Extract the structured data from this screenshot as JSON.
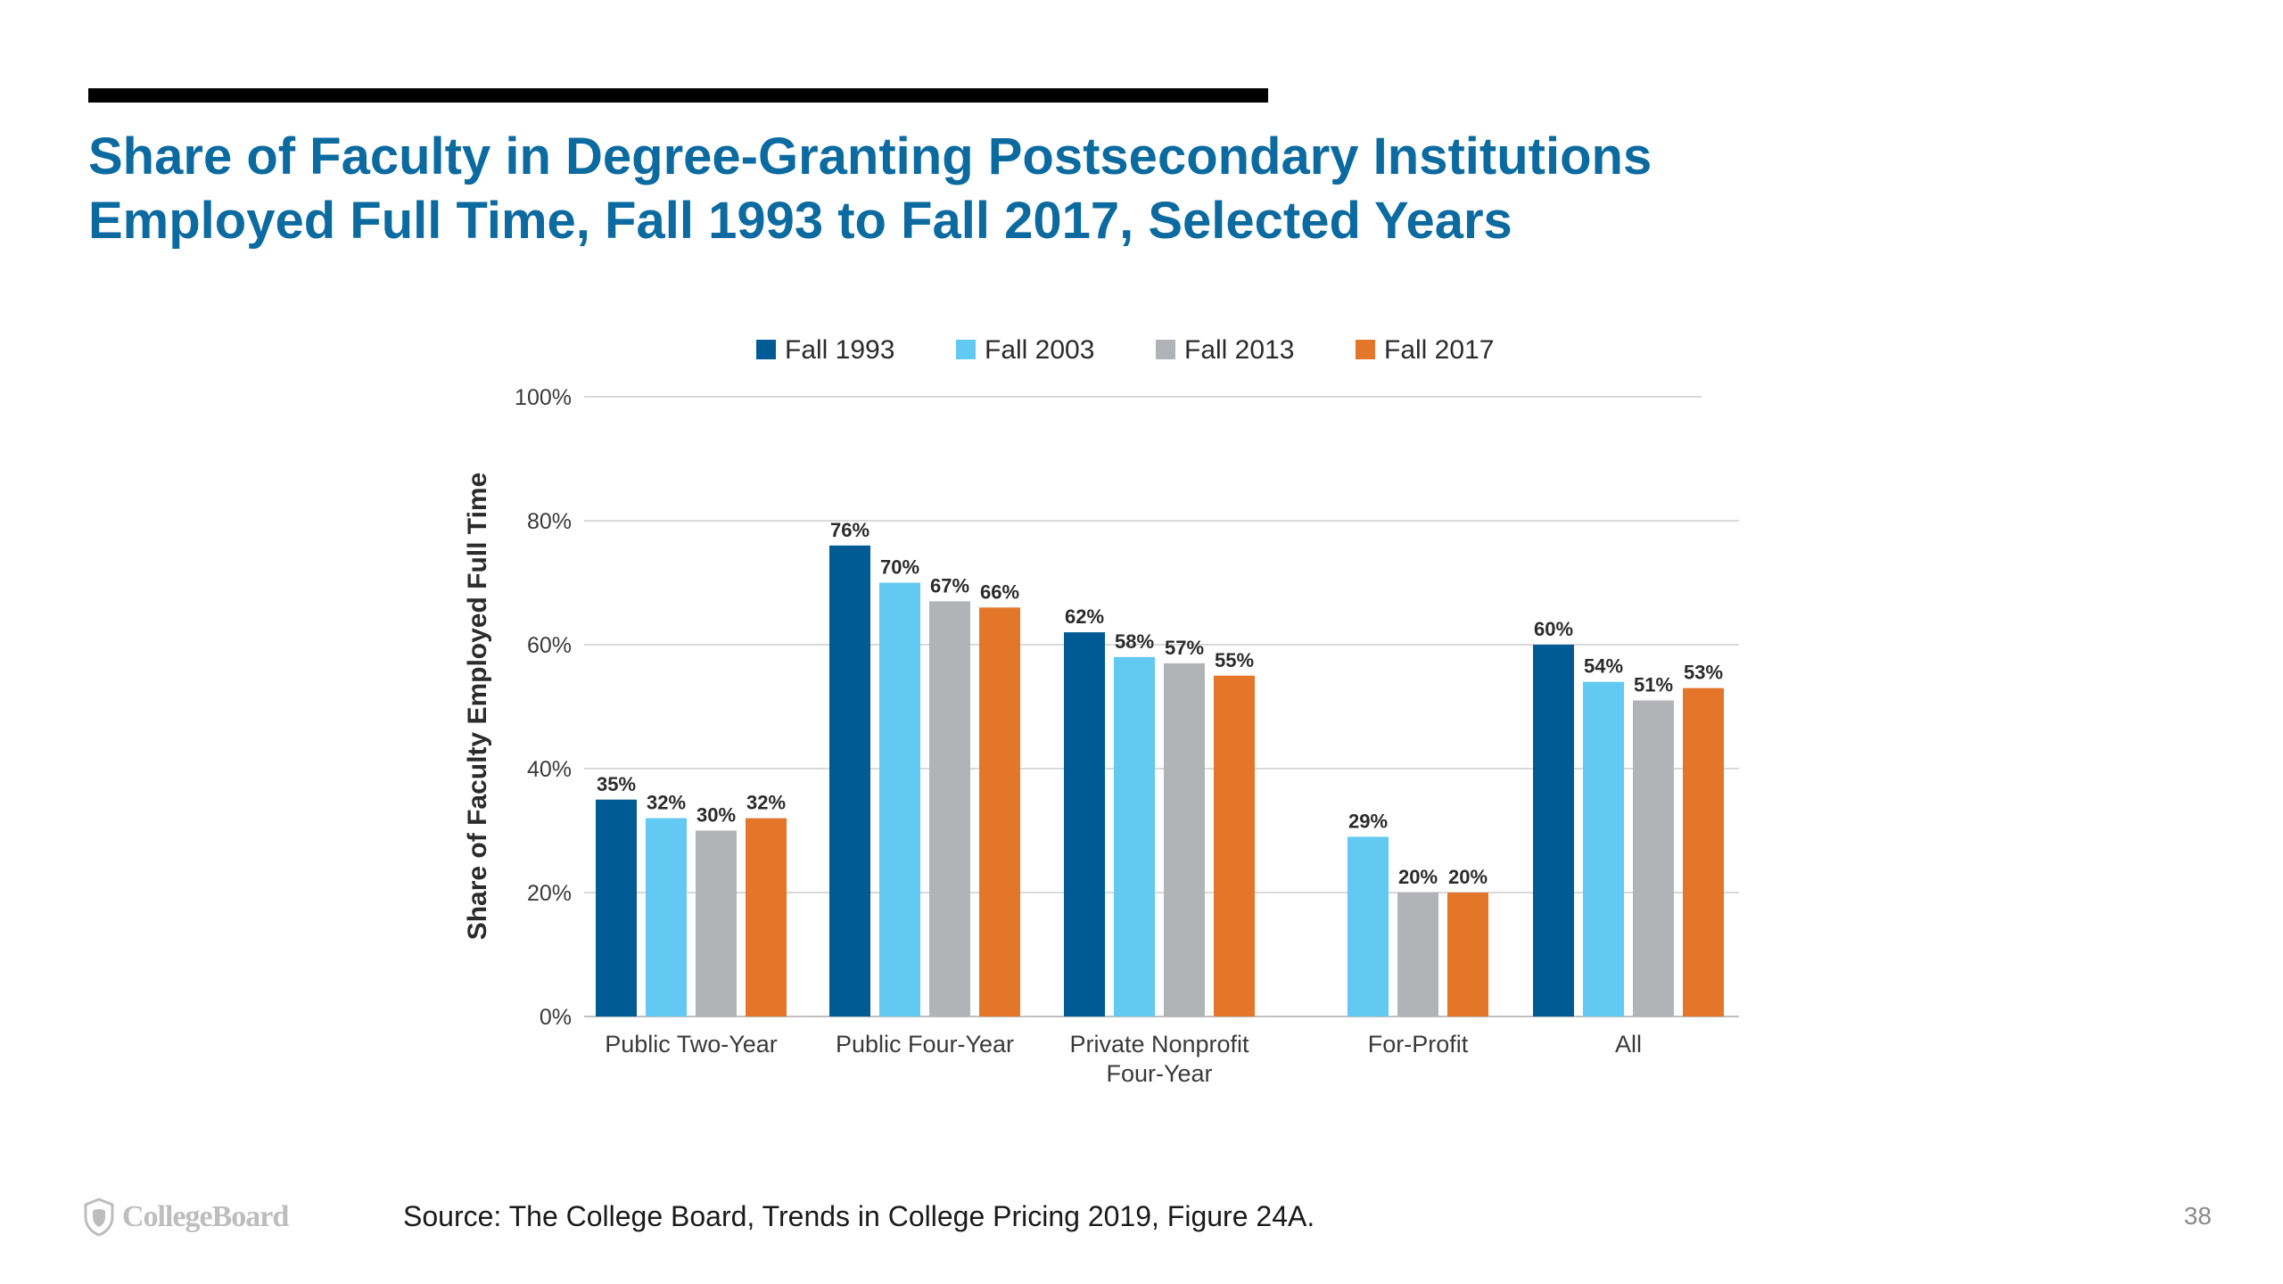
{
  "slide": {
    "title_line1": "Share of Faculty in Degree-Granting Postsecondary Institutions",
    "title_line2": "Employed Full Time, Fall 1993 to Fall 2017, Selected Years",
    "source": "Source: The College Board, Trends in College Pricing 2019, Figure 24A.",
    "logo_text": "CollegeBoard",
    "logo_icon": "shield-acorn-icon",
    "page_number": "38",
    "title_color": "#0b6a9f"
  },
  "chart_data": {
    "type": "bar",
    "ylabel": "Share of Faculty Employed Full Time",
    "ylim": [
      0,
      100
    ],
    "yticks": [
      "0%",
      "20%",
      "40%",
      "60%",
      "80%",
      "100%"
    ],
    "grid": true,
    "legend_position": "top",
    "categories": [
      [
        "Public Two-Year"
      ],
      [
        "Public Four-Year"
      ],
      [
        "Private Nonprofit",
        "Four-Year"
      ],
      [
        "For-Profit"
      ],
      [
        "All"
      ]
    ],
    "series": [
      {
        "name": "Fall 1993",
        "color": "#005b94",
        "values": [
          35,
          76,
          62,
          null,
          60
        ],
        "labels": [
          "35%",
          "76%",
          "62%",
          null,
          "60%"
        ]
      },
      {
        "name": "Fall 2003",
        "color": "#62c9f2",
        "values": [
          32,
          70,
          58,
          29,
          54
        ],
        "labels": [
          "32%",
          "70%",
          "58%",
          "29%",
          "54%"
        ]
      },
      {
        "name": "Fall 2013",
        "color": "#b2b3b6",
        "values": [
          30,
          67,
          57,
          20,
          51
        ],
        "labels": [
          "30%",
          "67%",
          "57%",
          "20%",
          "51%"
        ]
      },
      {
        "name": "Fall 2017",
        "color": "#e4762a",
        "values": [
          32,
          66,
          55,
          20,
          53
        ],
        "labels": [
          "32%",
          "66%",
          "55%",
          "20%",
          "53%"
        ]
      }
    ]
  }
}
